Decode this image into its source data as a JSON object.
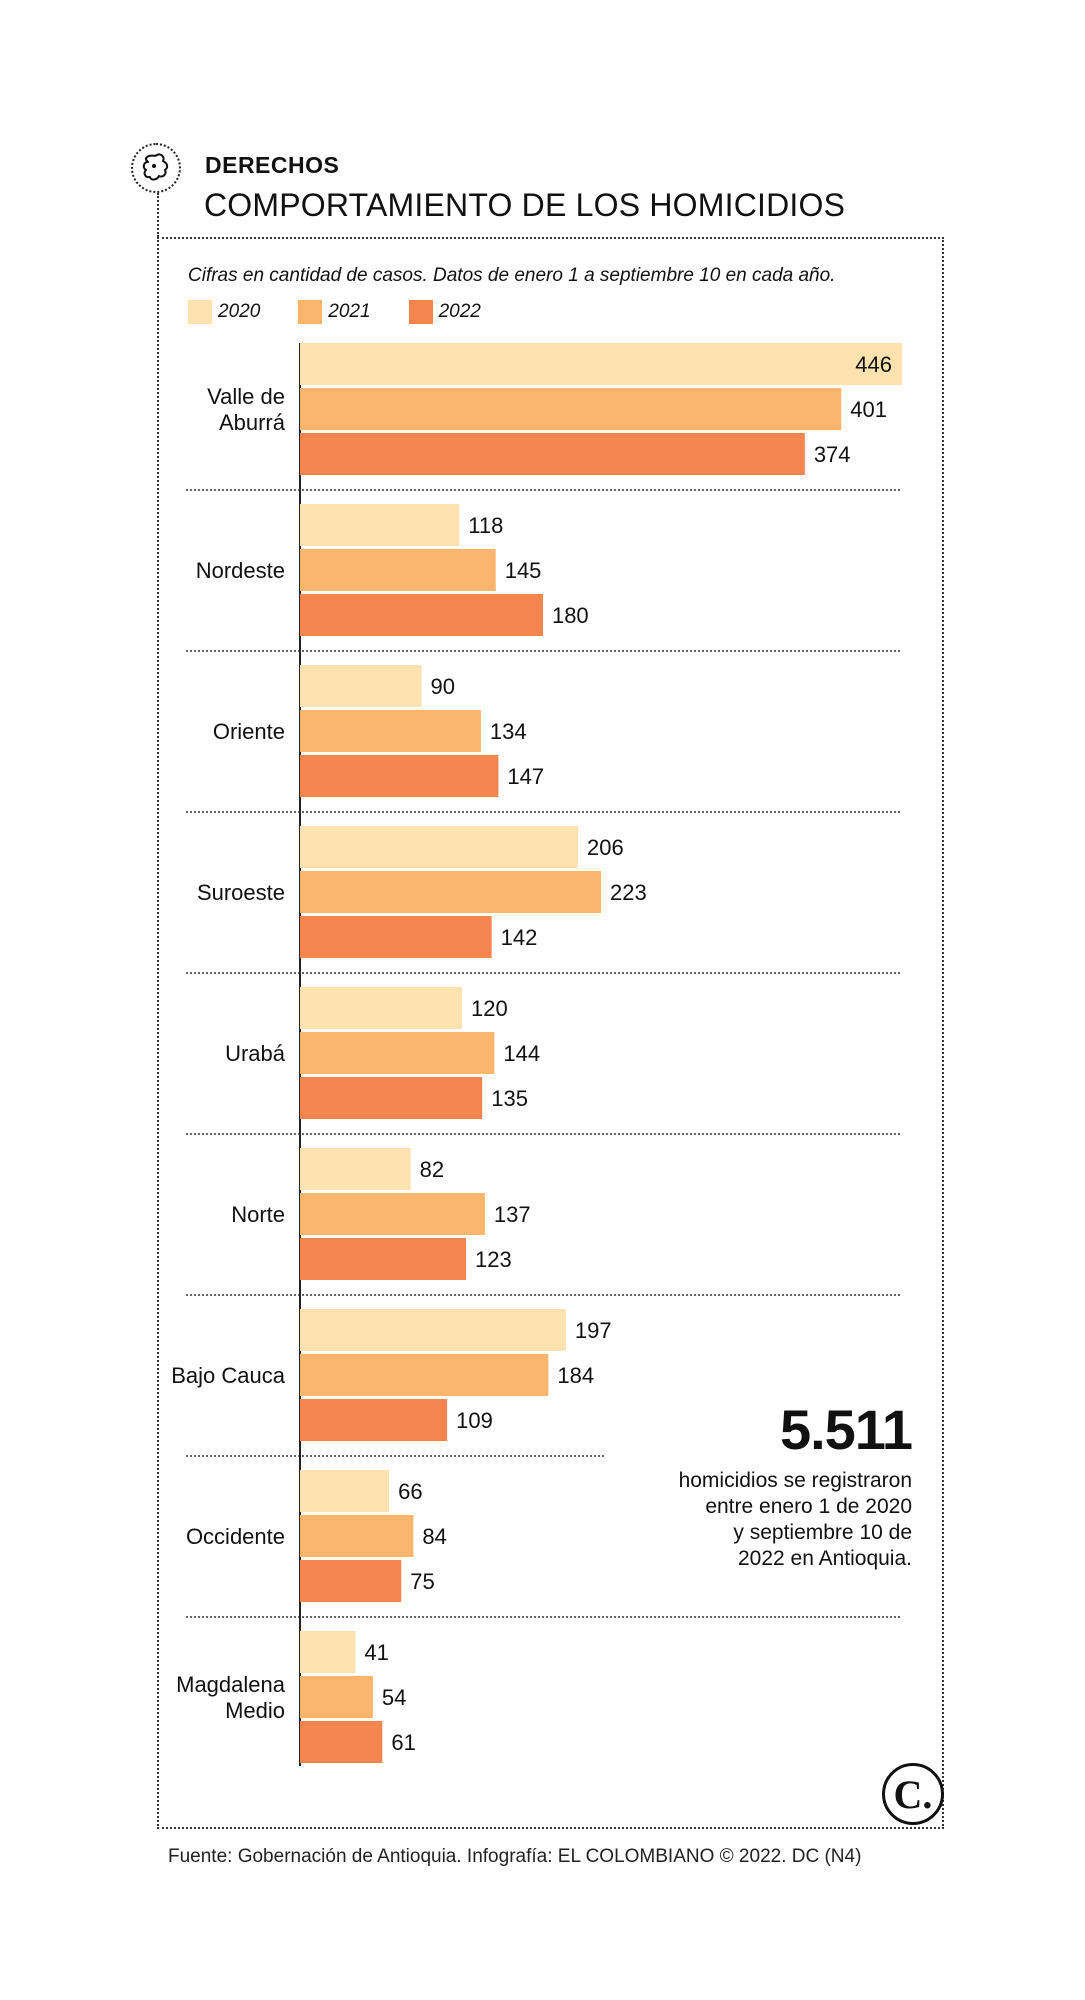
{
  "header": {
    "section": "DERECHOS",
    "title": "COMPORTAMIENTO DE LOS HOMICIDIOS",
    "subtitle": "Cifras en cantidad de casos. Datos de enero 1 a septiembre 10 en cada año."
  },
  "colors": {
    "2020": "#fde2b0",
    "2021": "#fbb56d",
    "2022": "#f5854f"
  },
  "chart_data": {
    "type": "bar",
    "orientation": "horizontal",
    "categories": [
      "Valle de Aburrá",
      "Nordeste",
      "Oriente",
      "Suroeste",
      "Urabá",
      "Norte",
      "Bajo Cauca",
      "Occidente",
      "Magdalena Medio"
    ],
    "series": [
      {
        "name": "2020",
        "values": [
          446,
          118,
          90,
          206,
          120,
          82,
          197,
          66,
          41
        ]
      },
      {
        "name": "2021",
        "values": [
          401,
          145,
          134,
          223,
          144,
          137,
          184,
          84,
          54
        ]
      },
      {
        "name": "2022",
        "values": [
          374,
          180,
          147,
          142,
          135,
          123,
          109,
          75,
          61
        ]
      }
    ],
    "legend_position": "top-left",
    "grid": false
  },
  "highlight": {
    "total": "5.511",
    "text_lines": [
      "homicidios se registraron",
      "entre enero 1 de 2020",
      "y septiembre 10 de",
      "2022 en Antioquia."
    ]
  },
  "logo_text": "C.",
  "footer": {
    "source": "Fuente: Gobernación de Antioquia. Infografía: EL COLOMBIANO © 2022. DC (N4)"
  },
  "icons": {
    "section_icon": "antioquia-map-icon"
  }
}
